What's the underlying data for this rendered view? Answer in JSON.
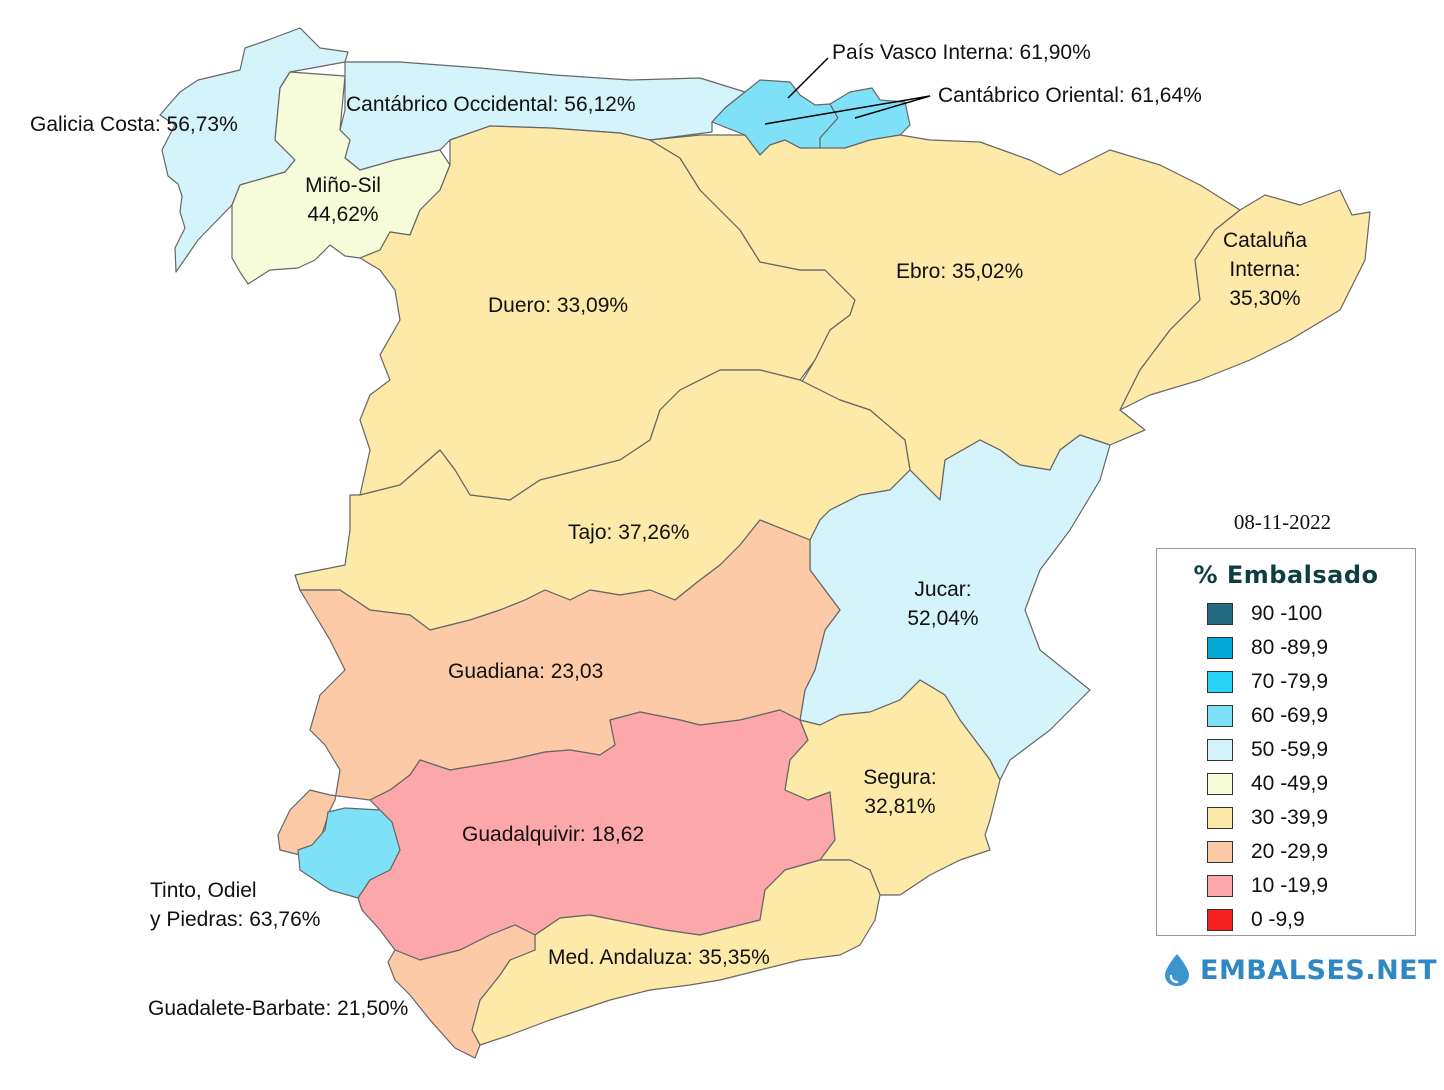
{
  "date": "08-11-2022",
  "colors": {
    "c90": "#256a80",
    "c80": "#06a9d6",
    "c70": "#27d3f6",
    "c60": "#7fe1f8",
    "c50": "#d4f3fb",
    "c40": "#f6fbd9",
    "c30": "#fde9a8",
    "c20": "#fccaa6",
    "c10": "#fca8aa",
    "c0": "#f52020"
  },
  "basins": [
    {
      "name": "Galicia Costa",
      "label": "Galicia Costa: 56,73%",
      "value": 56.73,
      "color": "#d4f3fb"
    },
    {
      "name": "Cantábrico Occidental",
      "label": "Cantábrico Occidental: 56,12%",
      "value": 56.12,
      "color": "#d4f3fb"
    },
    {
      "name": "País Vasco Interna",
      "label": "País Vasco Interna: 61,90%",
      "value": 61.9,
      "color": "#7fe1f8"
    },
    {
      "name": "Cantábrico Oriental",
      "label": "Cantábrico Oriental: 61,64%",
      "value": 61.64,
      "color": "#7fe1f8"
    },
    {
      "name": "Miño-Sil",
      "label_line1": "Miño-Sil",
      "label_line2": "44,62%",
      "value": 44.62,
      "color": "#f6fbd9"
    },
    {
      "name": "Duero",
      "label": "Duero: 33,09%",
      "value": 33.09,
      "color": "#fde9a8"
    },
    {
      "name": "Ebro",
      "label": "Ebro: 35,02%",
      "value": 35.02,
      "color": "#fde9a8"
    },
    {
      "name": "Cataluña Interna",
      "label_line1": "Cataluña",
      "label_line2": "Interna:",
      "label_line3": "35,30%",
      "value": 35.3,
      "color": "#fde9a8"
    },
    {
      "name": "Tajo",
      "label": "Tajo: 37,26%",
      "value": 37.26,
      "color": "#fde9a8"
    },
    {
      "name": "Jucar",
      "label_line1": "Jucar:",
      "label_line2": "52,04%",
      "value": 52.04,
      "color": "#d4f3fb"
    },
    {
      "name": "Guadiana",
      "label": "Guadiana: 23,03",
      "value": 23.03,
      "color": "#fccaa6"
    },
    {
      "name": "Segura",
      "label_line1": "Segura:",
      "label_line2": "32,81%",
      "value": 32.81,
      "color": "#fde9a8"
    },
    {
      "name": "Guadalquivir",
      "label": "Guadalquivir: 18,62",
      "value": 18.62,
      "color": "#fca8aa"
    },
    {
      "name": "Tinto, Odiel y Piedras",
      "label_line1": "Tinto, Odiel",
      "label_line2": "y Piedras: 63,76%",
      "value": 63.76,
      "color": "#7fe1f8"
    },
    {
      "name": "Med. Andaluza",
      "label": "Med. Andaluza: 35,35%",
      "value": 35.35,
      "color": "#fde9a8"
    },
    {
      "name": "Guadalete-Barbate",
      "label": "Guadalete-Barbate: 21,50%",
      "value": 21.5,
      "color": "#fccaa6"
    }
  ],
  "legend": {
    "title": "% Embalsado",
    "items": [
      {
        "label": "90 -100",
        "color": "#256a80"
      },
      {
        "label": "80 -89,9",
        "color": "#06a9d6"
      },
      {
        "label": "70 -79,9",
        "color": "#27d3f6"
      },
      {
        "label": "60 -69,9",
        "color": "#7fe1f8"
      },
      {
        "label": "50 -59,9",
        "color": "#d4f3fb"
      },
      {
        "label": "40 -49,9",
        "color": "#f6fbd9"
      },
      {
        "label": "30 -39,9",
        "color": "#fde9a8"
      },
      {
        "label": "20 -29,9",
        "color": "#fccaa6"
      },
      {
        "label": "10 -19,9",
        "color": "#fca8aa"
      },
      {
        "label": "0 -9,9",
        "color": "#f52020"
      }
    ]
  },
  "brand": {
    "name": "EMBALSES.NET",
    "icon": "water-drop-icon",
    "color": "#2f88c4"
  }
}
